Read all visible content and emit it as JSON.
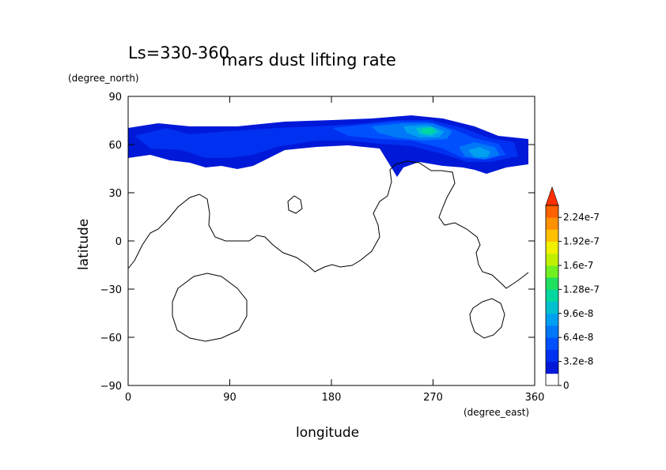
{
  "chart_data": {
    "type": "heatmap",
    "title": "mars dust lifting rate",
    "subtitle": "Ls=330-360",
    "xlabel": "longitude",
    "ylabel": "latitude",
    "x_units": "(degree_east)",
    "y_units": "(degree_north)",
    "xlim": [
      0,
      360
    ],
    "ylim": [
      -90,
      90
    ],
    "x_ticks": [
      "0",
      "90",
      "180",
      "270",
      "360"
    ],
    "x_tick_values": [
      0,
      90,
      180,
      270,
      360
    ],
    "y_ticks": [
      "90",
      "60",
      "30",
      "0",
      "-30",
      "-60",
      "-90"
    ],
    "y_tick_values": [
      90,
      60,
      30,
      0,
      -30,
      -60,
      -90
    ],
    "colorbar": {
      "labels": [
        "2.24e-7",
        "1.92e-7",
        "1.6e-7",
        "1.28e-7",
        "9.6e-8",
        "6.4e-8",
        "3.2e-8",
        "0"
      ],
      "levels": [
        0,
        1.6e-08,
        3.2e-08,
        4.8e-08,
        6.4e-08,
        8e-08,
        9.6e-08,
        1.12e-07,
        1.28e-07,
        1.44e-07,
        1.6e-07,
        1.76e-07,
        1.92e-07,
        2.08e-07,
        2.24e-07,
        2.4e-07
      ],
      "colors": [
        "#ffffff",
        "#0018d8",
        "#0030f0",
        "#0050ff",
        "#0078f8",
        "#00a0f0",
        "#00c0d0",
        "#00d8a0",
        "#20e060",
        "#70f020",
        "#c0f000",
        "#f0f000",
        "#ffc000",
        "#ff9000",
        "#ff6000",
        "#ff3000"
      ],
      "extend": "max"
    },
    "dust_band": {
      "description_levels_present": [
        1.6e-08,
        3.2e-08,
        4.8e-08,
        6.4e-08,
        8e-08,
        9.6e-08
      ],
      "regions": [
        {
          "lon": [
            0,
            360
          ],
          "lat": [
            45,
            70
          ],
          "level": 1.6e-08
        },
        {
          "lon": [
            210,
            330
          ],
          "lat": [
            55,
            75
          ],
          "level": 3.2e-08
        },
        {
          "lon": [
            250,
            300
          ],
          "lat": [
            62,
            73
          ],
          "level": 6.4e-08
        },
        {
          "lon": [
            262,
            280
          ],
          "lat": [
            66,
            71
          ],
          "level": 9.6e-08
        },
        {
          "lon": [
            290,
            320
          ],
          "lat": [
            48,
            58
          ],
          "level": 6.4e-08
        }
      ]
    }
  }
}
